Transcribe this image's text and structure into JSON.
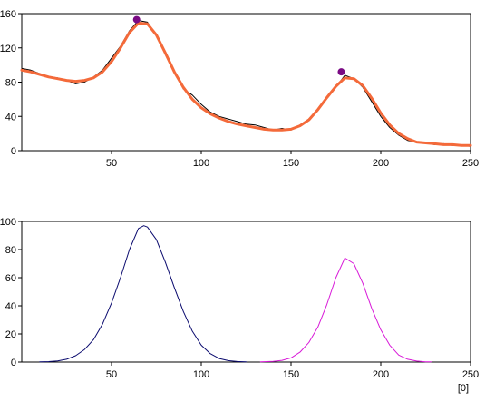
{
  "x_unit_label": "[0]",
  "colors": {
    "background": "#ffffff",
    "frame": "#000000",
    "noisy_data": "#000000",
    "fit_curve": "#f46a3a",
    "peak_marker": "#7a0a84",
    "peak_1": "#0a0a6e",
    "peak_2": "#d81ad8"
  },
  "chart_data": [
    {
      "type": "line",
      "title": "",
      "xlabel": "",
      "ylabel": "",
      "xlim": [
        0,
        250
      ],
      "ylim": [
        0,
        160
      ],
      "xticks": [
        "50",
        "100",
        "150",
        "200",
        "250"
      ],
      "yticks": [
        "0",
        "40",
        "80",
        "120",
        "160"
      ],
      "grid": false,
      "series": [
        {
          "role": "data",
          "color": "#000000",
          "x": [
            0,
            5,
            10,
            15,
            20,
            25,
            30,
            35,
            40,
            45,
            50,
            55,
            60,
            65,
            70,
            75,
            80,
            85,
            90,
            95,
            100,
            105,
            110,
            115,
            120,
            125,
            130,
            135,
            140,
            145,
            150,
            155,
            160,
            165,
            170,
            175,
            180,
            185,
            190,
            195,
            200,
            205,
            210,
            215,
            220,
            225,
            230,
            235,
            240,
            245,
            250
          ],
          "y": [
            96,
            94,
            90,
            86,
            85,
            82,
            78,
            80,
            86,
            94,
            108,
            122,
            140,
            152,
            150,
            135,
            112,
            93,
            72,
            65,
            54,
            45,
            40,
            37,
            34,
            31,
            30,
            27,
            24,
            26,
            24,
            30,
            37,
            48,
            63,
            74,
            88,
            84,
            74,
            57,
            40,
            27,
            18,
            12,
            10,
            9,
            7,
            8,
            6,
            6,
            5
          ]
        },
        {
          "role": "fit",
          "color": "#f46a3a",
          "x": [
            0,
            5,
            10,
            15,
            20,
            25,
            30,
            35,
            40,
            45,
            50,
            55,
            60,
            65,
            70,
            75,
            80,
            85,
            90,
            95,
            100,
            105,
            110,
            115,
            120,
            125,
            130,
            135,
            140,
            145,
            150,
            155,
            160,
            165,
            170,
            175,
            180,
            185,
            190,
            195,
            200,
            205,
            210,
            215,
            220,
            225,
            230,
            235,
            240,
            245,
            250
          ],
          "y": [
            94,
            92,
            89,
            86,
            84,
            82,
            81,
            82,
            85,
            92,
            104,
            120,
            138,
            149,
            148,
            135,
            114,
            92,
            74,
            60,
            50,
            43,
            38,
            34,
            31,
            29,
            27,
            25,
            24,
            24,
            25,
            29,
            36,
            48,
            62,
            75,
            85,
            84,
            76,
            61,
            44,
            30,
            20,
            14,
            10,
            9,
            8,
            7,
            7,
            6,
            6
          ]
        }
      ],
      "peak_markers": [
        {
          "x": 64,
          "y": 153
        },
        {
          "x": 178,
          "y": 92
        }
      ]
    },
    {
      "type": "line",
      "title": "",
      "xlabel": "[0]",
      "ylabel": "",
      "xlim": [
        0,
        250
      ],
      "ylim": [
        0,
        100
      ],
      "xticks": [
        "50",
        "100",
        "150",
        "200",
        "250"
      ],
      "yticks": [
        "0",
        "20",
        "40",
        "60",
        "80",
        "100"
      ],
      "grid": false,
      "series": [
        {
          "role": "peak",
          "color": "#0a0a6e",
          "x": [
            10,
            15,
            20,
            25,
            30,
            35,
            40,
            45,
            50,
            55,
            60,
            65,
            68,
            70,
            75,
            80,
            85,
            90,
            95,
            100,
            105,
            110,
            115,
            120,
            125
          ],
          "y": [
            0.1,
            0.3,
            0.8,
            2,
            4.5,
            9,
            16,
            27,
            42,
            60,
            80,
            95,
            97,
            96,
            87,
            71,
            53,
            36,
            22,
            12,
            6,
            2.5,
            1,
            0.4,
            0.1
          ]
        },
        {
          "role": "peak",
          "color": "#d81ad8",
          "x": [
            133,
            140,
            145,
            150,
            155,
            160,
            165,
            170,
            175,
            180,
            185,
            190,
            195,
            200,
            205,
            210,
            215,
            220,
            225,
            228
          ],
          "y": [
            0.1,
            0.5,
            1.2,
            3,
            7,
            14,
            25,
            41,
            60,
            74,
            70,
            56,
            38,
            23,
            12,
            5,
            2,
            0.7,
            0.2,
            0.1
          ]
        }
      ]
    }
  ]
}
